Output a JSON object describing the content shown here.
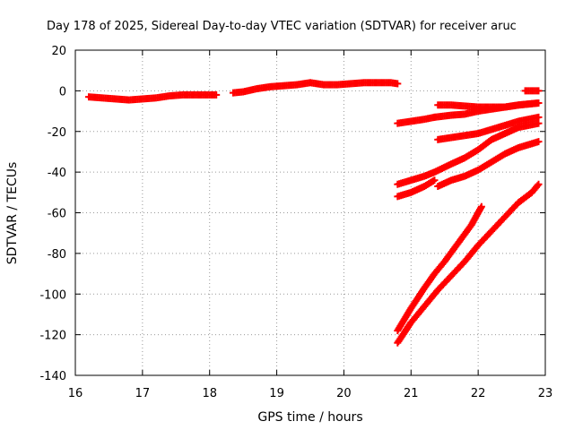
{
  "chart_data": {
    "type": "scatter",
    "title": "Day 178 of 2025, Sidereal Day-to-day VTEC variation (SDTVAR) for receiver aruc",
    "xlabel": "GPS time / hours",
    "ylabel": "SDTVAR / TECUs",
    "xlim": [
      16,
      23
    ],
    "ylim": [
      -140,
      20
    ],
    "xticks": [
      "16",
      "17",
      "18",
      "19",
      "20",
      "21",
      "22",
      "23"
    ],
    "yticks": [
      "20",
      "0",
      "-20",
      "-40",
      "-60",
      "-80",
      "-100",
      "-120",
      "-140"
    ],
    "xtick_values": [
      16,
      17,
      18,
      19,
      20,
      21,
      22,
      23
    ],
    "ytick_values": [
      20,
      0,
      -20,
      -40,
      -60,
      -80,
      -100,
      -120,
      -140
    ],
    "grid": true,
    "marker": "plus",
    "color": "#ff0000",
    "series": [
      {
        "x": [
          16.2,
          16.4,
          16.6,
          16.8,
          17.0,
          17.2,
          17.4,
          17.6,
          17.8,
          18.0,
          18.1
        ],
        "y": [
          -3,
          -3.5,
          -4,
          -4.5,
          -4,
          -3.5,
          -2.5,
          -2,
          -2,
          -2,
          -2
        ]
      },
      {
        "x": [
          18.35,
          18.5,
          18.7,
          18.9,
          19.1,
          19.3,
          19.5,
          19.7,
          19.9,
          20.1,
          20.3,
          20.5,
          20.7,
          20.8
        ],
        "y": [
          -1,
          -0.5,
          1,
          2,
          2.5,
          3,
          4,
          3,
          3,
          3.5,
          4,
          4,
          4,
          3.5
        ]
      },
      {
        "x": [
          20.8,
          21.0,
          21.2,
          21.35
        ],
        "y": [
          -16,
          -15,
          -14,
          -13
        ]
      },
      {
        "x": [
          21.35,
          21.6,
          21.8,
          22.0,
          22.2,
          22.4,
          22.6,
          22.9
        ],
        "y": [
          -13,
          -12,
          -11.5,
          -10,
          -9,
          -8,
          -7,
          -6
        ]
      },
      {
        "x": [
          21.4,
          21.6,
          21.8,
          22.0,
          22.2,
          22.4,
          22.6,
          22.9
        ],
        "y": [
          -7,
          -7,
          -7.5,
          -8,
          -8,
          -8,
          -7,
          -6
        ]
      },
      {
        "x": [
          22.7,
          22.9
        ],
        "y": [
          0,
          0
        ]
      },
      {
        "x": [
          21.4,
          21.6,
          21.8,
          22.0,
          22.2,
          22.4,
          22.6,
          22.9
        ],
        "y": [
          -24,
          -23,
          -22,
          -21,
          -19,
          -17,
          -15,
          -13
        ]
      },
      {
        "x": [
          20.8,
          21.0,
          21.2,
          21.35,
          21.6,
          21.8,
          22.0,
          22.2,
          22.4,
          22.6,
          22.9
        ],
        "y": [
          -46,
          -44,
          -42,
          -40,
          -36,
          -33,
          -29,
          -24,
          -21,
          -18,
          -16
        ]
      },
      {
        "x": [
          20.8,
          21.0,
          21.2,
          21.35
        ],
        "y": [
          -52,
          -50,
          -47,
          -44
        ]
      },
      {
        "x": [
          21.4,
          21.6,
          21.8,
          22.0,
          22.2,
          22.4,
          22.6,
          22.9
        ],
        "y": [
          -47,
          -44,
          -42,
          -39,
          -35,
          -31,
          -28,
          -25
        ]
      },
      {
        "x": [
          20.8,
          21.0,
          21.2,
          21.35,
          21.5,
          21.7,
          21.9,
          22.05
        ],
        "y": [
          -118,
          -107,
          -97,
          -90,
          -84,
          -75,
          -66,
          -57
        ]
      },
      {
        "x": [
          20.8,
          21.0,
          21.2,
          21.4,
          21.6,
          21.8,
          22.0,
          22.2,
          22.4,
          22.6,
          22.8,
          22.9
        ],
        "y": [
          -124,
          -114,
          -106,
          -98,
          -91,
          -84,
          -76,
          -69,
          -62,
          -55,
          -50,
          -46
        ]
      }
    ]
  }
}
